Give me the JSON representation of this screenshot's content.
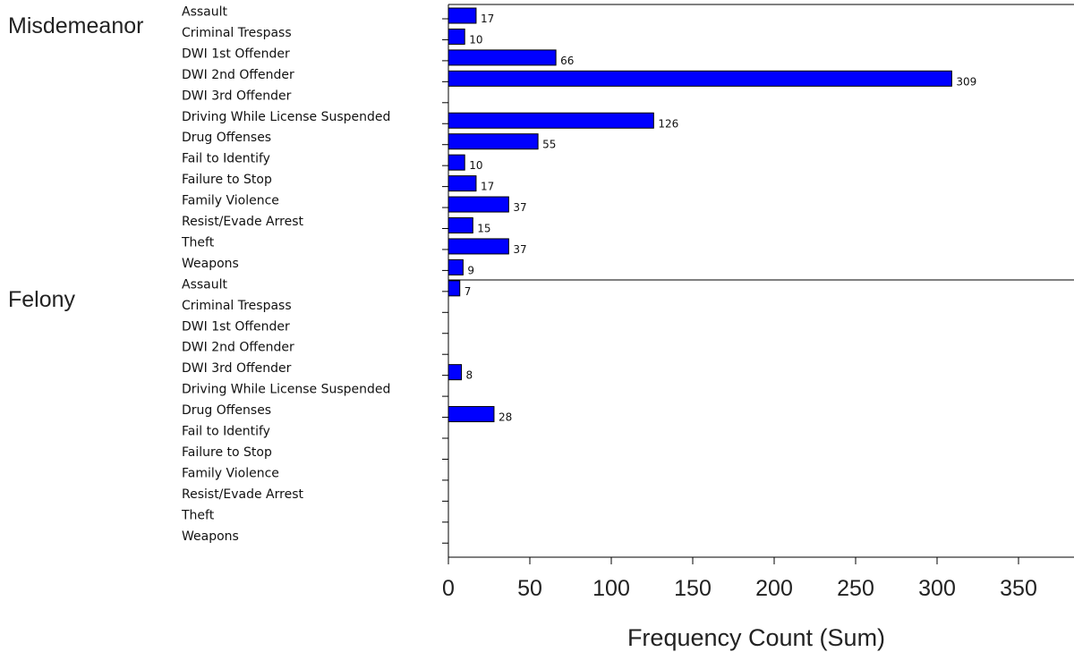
{
  "chart_data": {
    "type": "bar",
    "orientation": "horizontal",
    "xlabel": "Frequency Count (Sum)",
    "xlim": [
      0,
      385
    ],
    "x_ticks": [
      0,
      50,
      100,
      150,
      200,
      250,
      300,
      350
    ],
    "bar_color": "#0000ff",
    "bar_outline": "#000000",
    "grid": false,
    "categories": [
      "Assault",
      "Criminal Trespass",
      "DWI 1st Offender",
      "DWI 2nd Offender",
      "DWI 3rd Offender",
      "Driving While License Suspended",
      "Drug Offenses",
      "Fail to Identify",
      "Failure to Stop",
      "Family Violence",
      "Resist/Evade Arrest",
      "Theft",
      "Weapons"
    ],
    "groups": [
      {
        "name": "Misdemeanor",
        "values": [
          17,
          10,
          66,
          309,
          null,
          126,
          55,
          10,
          17,
          37,
          15,
          37,
          9
        ]
      },
      {
        "name": "Felony",
        "values": [
          7,
          null,
          null,
          null,
          8,
          null,
          28,
          null,
          null,
          null,
          null,
          null,
          null
        ]
      }
    ]
  }
}
